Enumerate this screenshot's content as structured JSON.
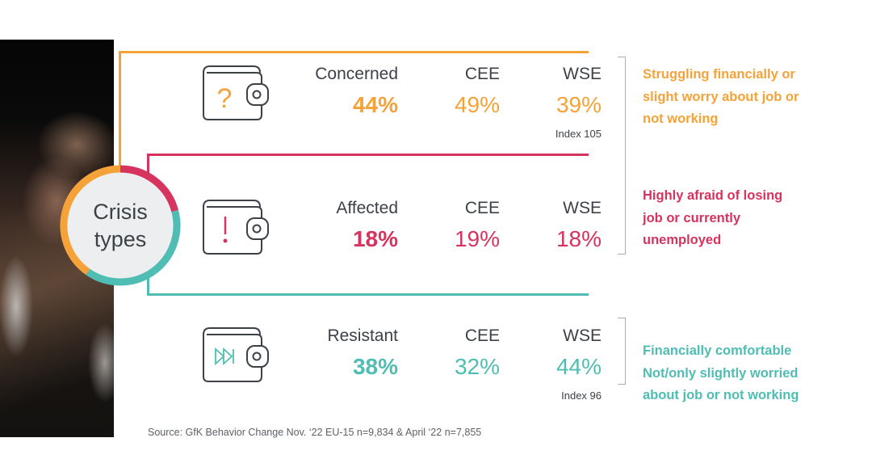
{
  "title": "Crisis types",
  "title_lines": [
    "Crisis",
    "types"
  ],
  "colors": {
    "concerned": "#f5a239",
    "affected": "#d6335e",
    "resistant": "#4fbdb3",
    "text": "#3d4147"
  },
  "columns": {
    "cee": "CEE",
    "wse": "WSE"
  },
  "rows": [
    {
      "type": "Concerned",
      "icon": "wallet-question-icon",
      "total": "44%",
      "cee": "49%",
      "wse": "39%",
      "index": "Index 105",
      "description": [
        "Struggling financially or",
        "slight worry about job or",
        "not working"
      ]
    },
    {
      "type": "Affected",
      "icon": "wallet-exclamation-icon",
      "total": "18%",
      "cee": "19%",
      "wse": "18%",
      "index": null,
      "description": [
        "Highly afraid of losing",
        "job or currently",
        "unemployed"
      ]
    },
    {
      "type": "Resistant",
      "icon": "wallet-fast-forward-icon",
      "total": "38%",
      "cee": "32%",
      "wse": "44%",
      "index": "Index 96",
      "description": [
        "Financially comfortable",
        "Not/only slightly worried",
        "about job or not working"
      ]
    }
  ],
  "source": "Source: GfK Behavior Change Nov. ‘22 EU-15 n=9,834 & April ‘22 n=7,855"
}
